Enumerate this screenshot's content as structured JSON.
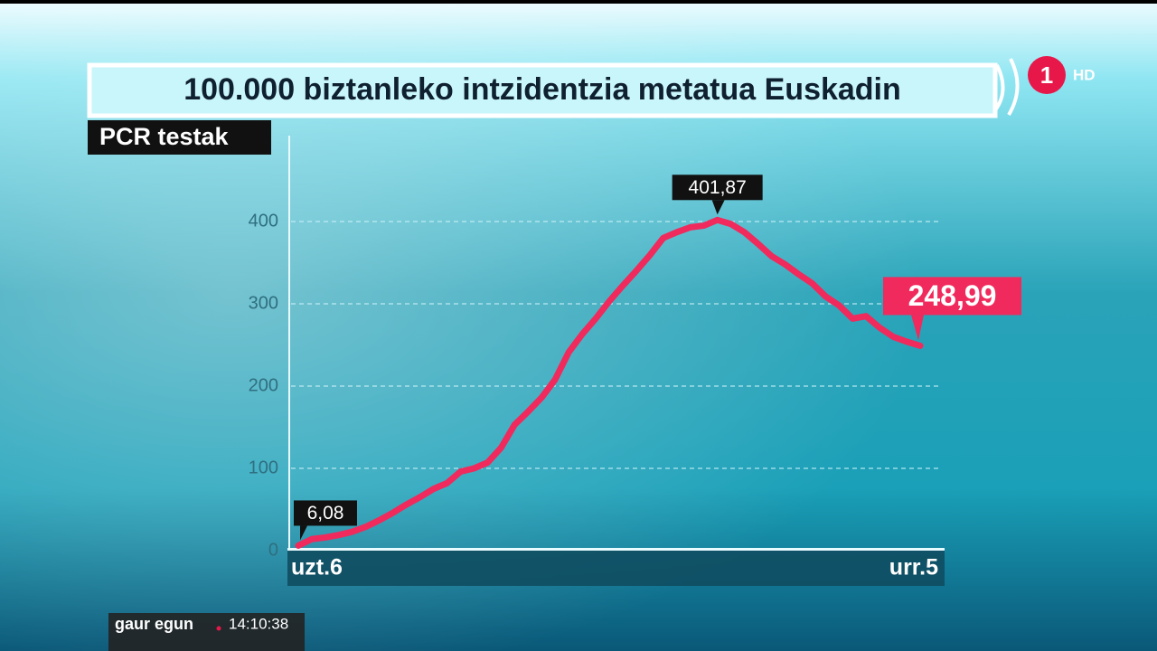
{
  "chart_data": {
    "type": "line",
    "title": "100.000 biztanleko intzidentzia metatua Euskadin",
    "subtitle": "PCR testak",
    "categories": [
      "uzt.6",
      null,
      null,
      null,
      null,
      null,
      null,
      null,
      null,
      null,
      null,
      null,
      null,
      null,
      null,
      null,
      null,
      null,
      null,
      null,
      null,
      null,
      null,
      null,
      null,
      null,
      null,
      null,
      null,
      null,
      null,
      null,
      null,
      null,
      null,
      null,
      null,
      null,
      null,
      null,
      null,
      null,
      null,
      null,
      null,
      null,
      "urr.5"
    ],
    "values": [
      6.08,
      14,
      16,
      19,
      23,
      29,
      37,
      46,
      56,
      65,
      75,
      82,
      96,
      100,
      107,
      125,
      153,
      169,
      186,
      208,
      241,
      263,
      282,
      303,
      322,
      340,
      359,
      380,
      387,
      393,
      395,
      401.87,
      397,
      387,
      373,
      358,
      348,
      336,
      325,
      309,
      298,
      282,
      285,
      271,
      260,
      254,
      248.99
    ],
    "value_labels": [
      "6,08",
      null,
      null,
      null,
      null,
      null,
      null,
      null,
      null,
      null,
      null,
      null,
      null,
      null,
      null,
      null,
      null,
      null,
      null,
      null,
      null,
      null,
      null,
      null,
      null,
      null,
      null,
      null,
      null,
      null,
      null,
      "401,87",
      null,
      null,
      null,
      null,
      null,
      null,
      null,
      null,
      null,
      null,
      null,
      null,
      null,
      null,
      "248,99"
    ],
    "color": "#f02a5c",
    "ylim": [
      0,
      500
    ],
    "yticks": [
      0,
      100,
      200,
      300,
      400
    ],
    "grid": true
  },
  "overlay": {
    "program": "gaur egun",
    "time": "14:10:38",
    "channel": "1",
    "badge": "HD"
  }
}
